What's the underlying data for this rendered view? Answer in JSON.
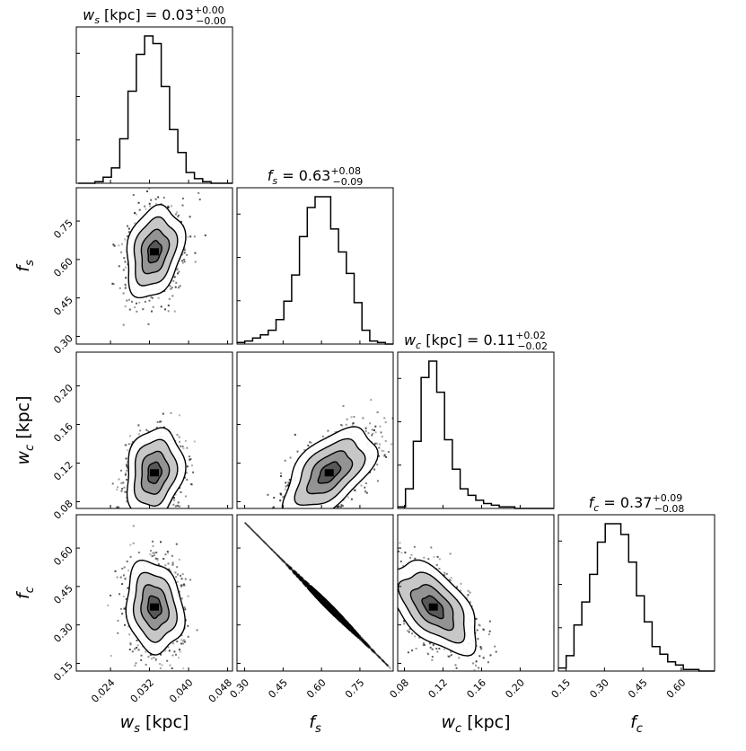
{
  "chart_data": {
    "type": "corner",
    "parameters": [
      {
        "symbol": "w",
        "sub": "s",
        "unit": "[kpc]",
        "median": "0.03",
        "plus": "+0.00",
        "minus": "−0.00",
        "range": [
          0.017,
          0.049
        ],
        "ticks": [
          0.024,
          0.032,
          0.04,
          0.048
        ],
        "tick_labels": [
          "0.024",
          "0.032",
          "0.040",
          "0.048"
        ]
      },
      {
        "symbol": "f",
        "sub": "s",
        "unit": "",
        "median": "0.63",
        "plus": "+0.08",
        "minus": "−0.09",
        "range": [
          0.27,
          0.88
        ],
        "ticks": [
          0.3,
          0.45,
          0.6,
          0.75
        ],
        "tick_labels": [
          "0.30",
          "0.45",
          "0.60",
          "0.75"
        ]
      },
      {
        "symbol": "w",
        "sub": "c",
        "unit": "[kpc]",
        "median": "0.11",
        "plus": "+0.02",
        "minus": "−0.02",
        "range": [
          0.073,
          0.235
        ],
        "ticks": [
          0.08,
          0.12,
          0.16,
          0.2
        ],
        "tick_labels": [
          "0.08",
          "0.12",
          "0.16",
          "0.20"
        ]
      },
      {
        "symbol": "f",
        "sub": "c",
        "unit": "",
        "median": "0.37",
        "plus": "+0.09",
        "minus": "−0.08",
        "range": [
          0.12,
          0.73
        ],
        "ticks": [
          0.15,
          0.3,
          0.45,
          0.6
        ],
        "tick_labels": [
          "0.15",
          "0.30",
          "0.45",
          "0.60"
        ]
      }
    ],
    "histograms": [
      {
        "param": 0,
        "edges_lo": 0.0174,
        "bin_width": 0.0017,
        "counts": [
          0,
          0,
          1,
          4,
          10,
          29,
          60,
          84,
          96,
          91,
          63,
          35,
          20,
          7,
          3,
          1,
          0,
          0,
          0
        ]
      },
      {
        "param": 1,
        "edges_lo": 0.27,
        "bin_width": 0.0305,
        "counts": [
          1,
          2,
          4,
          6,
          9,
          16,
          28,
          45,
          70,
          89,
          96,
          96,
          75,
          60,
          46,
          27,
          9,
          2,
          1,
          0
        ]
      },
      {
        "param": 2,
        "edges_lo": 0.073,
        "bin_width": 0.0081,
        "counts": [
          1,
          12,
          41,
          80,
          90,
          71,
          42,
          24,
          12,
          8,
          5,
          3,
          2,
          1,
          1,
          0,
          0,
          0,
          0,
          0
        ]
      },
      {
        "param": 3,
        "edges_lo": 0.12,
        "bin_width": 0.0305,
        "counts": [
          2,
          10,
          30,
          45,
          63,
          84,
          96,
          96,
          89,
          71,
          49,
          32,
          16,
          11,
          6,
          4,
          1,
          1,
          0,
          0
        ]
      }
    ],
    "correlations": [
      [
        1,
        0,
        0.25
      ],
      [
        2,
        0,
        0.15
      ],
      [
        2,
        1,
        0.55
      ],
      [
        3,
        0,
        -0.15
      ],
      [
        3,
        1,
        -1.0
      ],
      [
        3,
        2,
        -0.55
      ]
    ],
    "sigmas": [
      0.0028,
      0.085,
      0.022,
      0.085
    ],
    "medians": [
      0.033,
      0.63,
      0.11,
      0.37
    ],
    "contour_levels_sigma": [
      0.5,
      1.0,
      1.5,
      2.0
    ]
  }
}
